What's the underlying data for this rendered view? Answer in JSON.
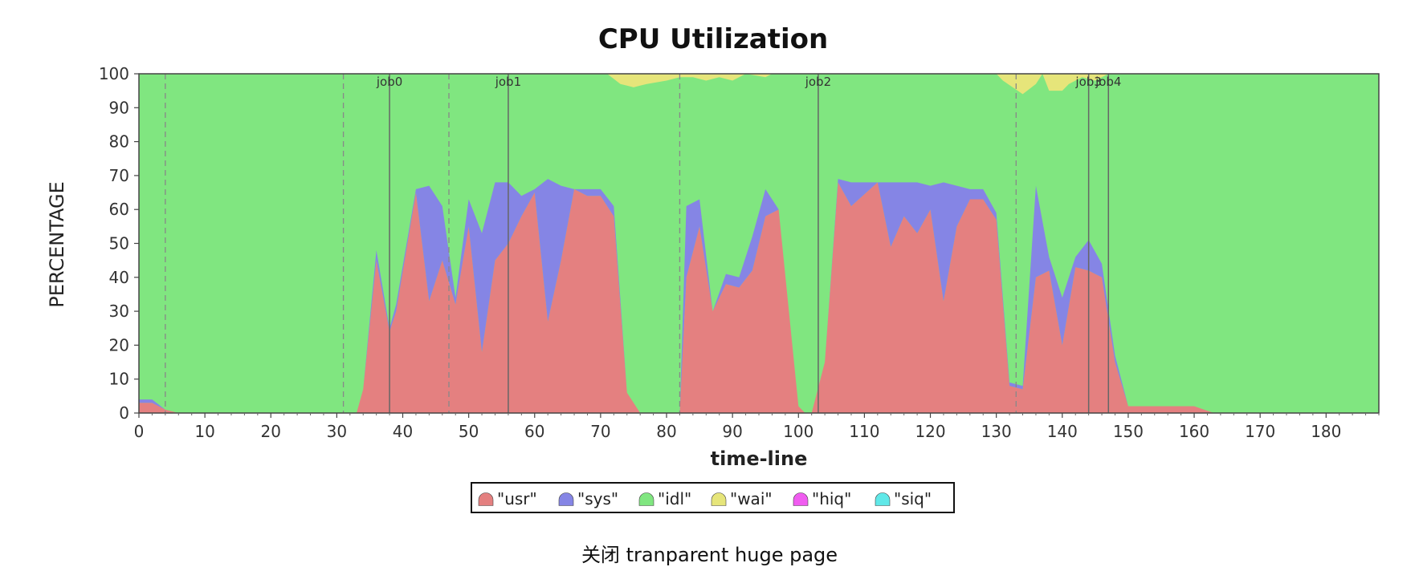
{
  "caption": "关闭 tranparent huge page",
  "chart_data": {
    "type": "area",
    "stacked": true,
    "title": "CPU Utilization",
    "xlabel": "time-line",
    "ylabel": "PERCENTAGE",
    "xlim": [
      0,
      188
    ],
    "ylim": [
      0,
      100
    ],
    "xticks": [
      0,
      10,
      20,
      30,
      40,
      50,
      60,
      70,
      80,
      90,
      100,
      110,
      120,
      130,
      140,
      150,
      160,
      170,
      180
    ],
    "yticks": [
      0,
      10,
      20,
      30,
      40,
      50,
      60,
      70,
      80,
      90,
      100
    ],
    "legend": {
      "placement": "bottom-center",
      "entries": [
        "\"usr\"",
        "\"sys\"",
        "\"idl\"",
        "\"wai\"",
        "\"hiq\"",
        "\"siq\""
      ]
    },
    "colors": {
      "usr": "#e48080",
      "sys": "#8585e5",
      "idl": "#80e680",
      "wai": "#e6e57a",
      "hiq": "#f05cf0",
      "siq": "#60e8e8"
    },
    "job_markers": [
      {
        "label": "job0",
        "x": 38
      },
      {
        "label": "job1",
        "x": 56
      },
      {
        "label": "job2",
        "x": 103
      },
      {
        "label": "job3",
        "x": 144
      },
      {
        "label": "job4",
        "x": 147
      }
    ],
    "dashed_markers": [
      4,
      31,
      47,
      82,
      133
    ],
    "series": [
      {
        "name": "usr",
        "points": [
          [
            0,
            3
          ],
          [
            2,
            3
          ],
          [
            4,
            1
          ],
          [
            6,
            0
          ],
          [
            33,
            0
          ],
          [
            34,
            7
          ],
          [
            36,
            45
          ],
          [
            38,
            24
          ],
          [
            39,
            30
          ],
          [
            42,
            65
          ],
          [
            44,
            33
          ],
          [
            46,
            45
          ],
          [
            48,
            32
          ],
          [
            50,
            55
          ],
          [
            52,
            18
          ],
          [
            54,
            45
          ],
          [
            56,
            50
          ],
          [
            58,
            58
          ],
          [
            60,
            65
          ],
          [
            62,
            27
          ],
          [
            64,
            45
          ],
          [
            66,
            66
          ],
          [
            68,
            64
          ],
          [
            70,
            64
          ],
          [
            72,
            58
          ],
          [
            74,
            6
          ],
          [
            76,
            0
          ],
          [
            82,
            0
          ],
          [
            83,
            40
          ],
          [
            85,
            55
          ],
          [
            87,
            30
          ],
          [
            89,
            38
          ],
          [
            91,
            37
          ],
          [
            93,
            42
          ],
          [
            95,
            58
          ],
          [
            97,
            60
          ],
          [
            100,
            2
          ],
          [
            101,
            0
          ],
          [
            102,
            0
          ],
          [
            104,
            15
          ],
          [
            106,
            68
          ],
          [
            108,
            61
          ],
          [
            112,
            68
          ],
          [
            114,
            49
          ],
          [
            116,
            58
          ],
          [
            118,
            53
          ],
          [
            120,
            60
          ],
          [
            122,
            33
          ],
          [
            124,
            55
          ],
          [
            126,
            63
          ],
          [
            128,
            63
          ],
          [
            130,
            57
          ],
          [
            132,
            8
          ],
          [
            134,
            7
          ],
          [
            136,
            40
          ],
          [
            138,
            42
          ],
          [
            140,
            20
          ],
          [
            142,
            43
          ],
          [
            144,
            42
          ],
          [
            146,
            40
          ],
          [
            148,
            15
          ],
          [
            150,
            2
          ],
          [
            160,
            2
          ],
          [
            163,
            0
          ],
          [
            188,
            0
          ]
        ]
      },
      {
        "name": "sys",
        "points": [
          [
            0,
            1
          ],
          [
            2,
            1
          ],
          [
            4,
            0
          ],
          [
            6,
            0
          ],
          [
            33,
            0
          ],
          [
            34,
            0
          ],
          [
            36,
            3
          ],
          [
            38,
            1
          ],
          [
            39,
            2
          ],
          [
            42,
            1
          ],
          [
            44,
            34
          ],
          [
            46,
            16
          ],
          [
            48,
            2
          ],
          [
            50,
            8
          ],
          [
            52,
            35
          ],
          [
            54,
            23
          ],
          [
            56,
            18
          ],
          [
            58,
            6
          ],
          [
            60,
            1
          ],
          [
            62,
            42
          ],
          [
            64,
            22
          ],
          [
            66,
            0
          ],
          [
            68,
            2
          ],
          [
            70,
            2
          ],
          [
            72,
            3
          ],
          [
            74,
            0
          ],
          [
            76,
            0
          ],
          [
            82,
            0
          ],
          [
            83,
            21
          ],
          [
            85,
            8
          ],
          [
            87,
            0
          ],
          [
            89,
            3
          ],
          [
            91,
            3
          ],
          [
            93,
            10
          ],
          [
            95,
            8
          ],
          [
            97,
            0
          ],
          [
            100,
            0
          ],
          [
            101,
            0
          ],
          [
            102,
            0
          ],
          [
            104,
            0
          ],
          [
            106,
            1
          ],
          [
            108,
            7
          ],
          [
            112,
            0
          ],
          [
            114,
            19
          ],
          [
            116,
            10
          ],
          [
            118,
            15
          ],
          [
            120,
            7
          ],
          [
            122,
            35
          ],
          [
            124,
            12
          ],
          [
            126,
            3
          ],
          [
            128,
            3
          ],
          [
            130,
            2
          ],
          [
            132,
            1
          ],
          [
            134,
            1
          ],
          [
            136,
            27
          ],
          [
            138,
            4
          ],
          [
            140,
            14
          ],
          [
            142,
            3
          ],
          [
            144,
            9
          ],
          [
            146,
            4
          ],
          [
            148,
            2
          ],
          [
            150,
            0
          ],
          [
            160,
            0
          ],
          [
            163,
            0
          ],
          [
            188,
            0
          ]
        ]
      },
      {
        "name": "wai",
        "points": [
          [
            0,
            0
          ],
          [
            71,
            0
          ],
          [
            73,
            3
          ],
          [
            75,
            4
          ],
          [
            77,
            3
          ],
          [
            80,
            2
          ],
          [
            82,
            1
          ],
          [
            84,
            1
          ],
          [
            86,
            2
          ],
          [
            88,
            1
          ],
          [
            90,
            2
          ],
          [
            92,
            0
          ],
          [
            95,
            1
          ],
          [
            96,
            0
          ],
          [
            129,
            0
          ],
          [
            130,
            0
          ],
          [
            131,
            2
          ],
          [
            134,
            6
          ],
          [
            136,
            3
          ],
          [
            137,
            0
          ],
          [
            138,
            5
          ],
          [
            140,
            5
          ],
          [
            141,
            3
          ],
          [
            143,
            1
          ],
          [
            145,
            2
          ],
          [
            147,
            0
          ],
          [
            188,
            0
          ]
        ]
      },
      {
        "name": "hiq",
        "points": [
          [
            0,
            0
          ],
          [
            188,
            0
          ]
        ]
      },
      {
        "name": "siq",
        "points": [
          [
            0,
            0
          ],
          [
            188,
            0
          ]
        ]
      }
    ],
    "residual_series": "idl"
  }
}
